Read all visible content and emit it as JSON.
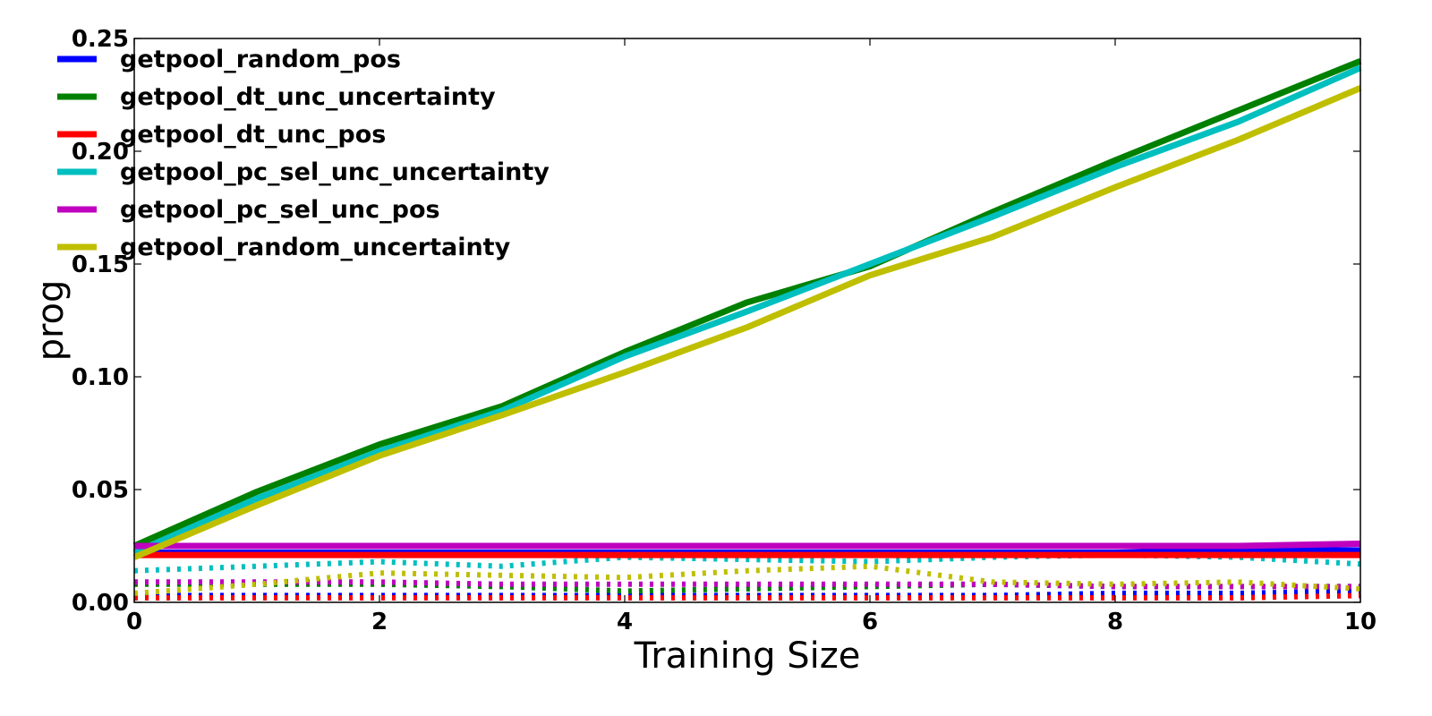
{
  "chart_data": {
    "type": "line",
    "title": "",
    "xlabel": "Training Size",
    "ylabel": "prog",
    "xlim": [
      0,
      10
    ],
    "ylim": [
      0,
      0.25
    ],
    "x_ticks": [
      "0",
      "2",
      "4",
      "6",
      "8",
      "10"
    ],
    "y_ticks": [
      "0.00",
      "0.05",
      "0.10",
      "0.15",
      "0.20",
      "0.25"
    ],
    "legend_position": "top-left",
    "grid": false,
    "x": [
      0,
      1,
      2,
      3,
      4,
      5,
      6,
      7,
      8,
      9,
      10
    ],
    "series": [
      {
        "name": "getpool_random_pos",
        "color": "#0000ff",
        "style": "solid",
        "values": [
          0.022,
          0.022,
          0.022,
          0.022,
          0.022,
          0.022,
          0.022,
          0.022,
          0.022,
          0.023,
          0.023
        ]
      },
      {
        "name": "getpool_dt_unc_uncertainty",
        "color": "#008000",
        "style": "solid",
        "values": [
          0.025,
          0.049,
          0.07,
          0.087,
          0.111,
          0.133,
          0.149,
          0.173,
          0.196,
          0.218,
          0.24
        ]
      },
      {
        "name": "getpool_dt_unc_pos",
        "color": "#ff0000",
        "style": "solid",
        "values": [
          0.021,
          0.021,
          0.021,
          0.021,
          0.021,
          0.021,
          0.021,
          0.021,
          0.021,
          0.021,
          0.021
        ]
      },
      {
        "name": "getpool_pc_sel_unc_uncertainty",
        "color": "#00bfbf",
        "style": "solid",
        "values": [
          0.022,
          0.046,
          0.067,
          0.085,
          0.109,
          0.129,
          0.15,
          0.171,
          0.193,
          0.213,
          0.237
        ]
      },
      {
        "name": "getpool_pc_sel_unc_pos",
        "color": "#bf00bf",
        "style": "solid",
        "values": [
          0.025,
          0.025,
          0.025,
          0.025,
          0.025,
          0.025,
          0.025,
          0.025,
          0.025,
          0.025,
          0.026
        ]
      },
      {
        "name": "getpool_random_uncertainty",
        "color": "#bfbf00",
        "style": "solid",
        "values": [
          0.02,
          0.043,
          0.065,
          0.083,
          0.102,
          0.122,
          0.145,
          0.162,
          0.184,
          0.205,
          0.228
        ]
      }
    ],
    "dotted_series": [
      {
        "color": "#0000ff",
        "values": [
          0.003,
          0.003,
          0.003,
          0.003,
          0.003,
          0.003,
          0.003,
          0.003,
          0.004,
          0.004,
          0.005
        ]
      },
      {
        "color": "#008000",
        "values": [
          0.008,
          0.008,
          0.008,
          0.007,
          0.005,
          0.006,
          0.007,
          0.008,
          0.007,
          0.007,
          0.007
        ]
      },
      {
        "color": "#ff0000",
        "values": [
          0.002,
          0.002,
          0.002,
          0.002,
          0.002,
          0.002,
          0.002,
          0.002,
          0.002,
          0.002,
          0.003
        ]
      },
      {
        "color": "#00bfbf",
        "values": [
          0.014,
          0.016,
          0.018,
          0.016,
          0.02,
          0.019,
          0.018,
          0.02,
          0.021,
          0.02,
          0.017
        ]
      },
      {
        "color": "#bf00bf",
        "values": [
          0.009,
          0.009,
          0.009,
          0.008,
          0.008,
          0.008,
          0.008,
          0.008,
          0.007,
          0.007,
          0.007
        ]
      },
      {
        "color": "#bfbf00",
        "values": [
          0.004,
          0.008,
          0.013,
          0.012,
          0.011,
          0.014,
          0.016,
          0.009,
          0.008,
          0.009,
          0.006
        ]
      }
    ]
  }
}
